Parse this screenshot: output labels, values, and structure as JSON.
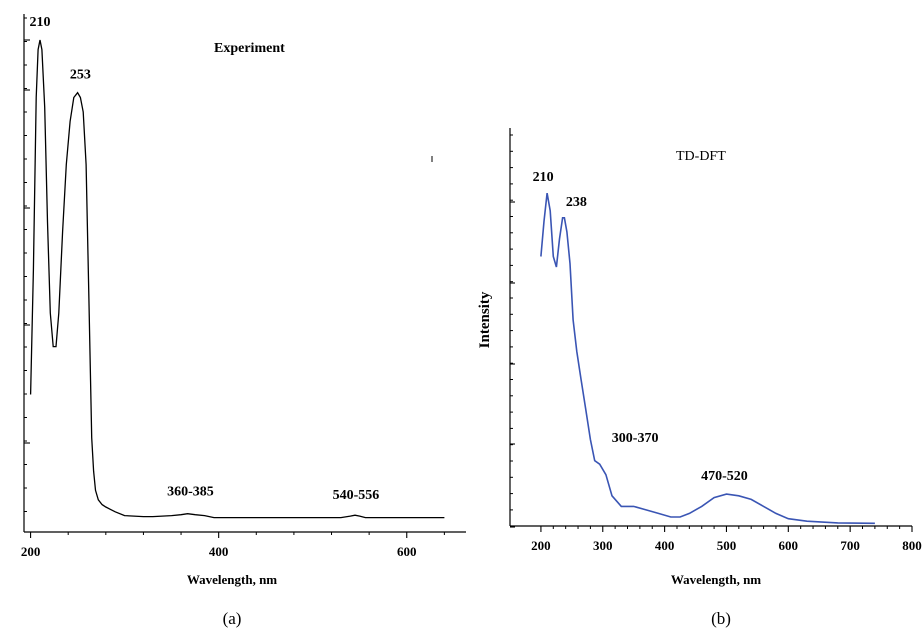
{
  "chart_data": [
    {
      "type": "line",
      "panel_label": "(a)",
      "title": "Experiment",
      "xlabel": "Wavelength, nm",
      "ylabel": "",
      "xlim": [
        193,
        663
      ],
      "ylim": [
        0,
        1.0
      ],
      "xticks": [
        200,
        400,
        600
      ],
      "color": "#000000",
      "grid": false,
      "series": [
        {
          "x": [
            200,
            203,
            206,
            208,
            210,
            212,
            215,
            218,
            221,
            224,
            227,
            230,
            234,
            238,
            242,
            246,
            250,
            253,
            256,
            259,
            262,
            265,
            267,
            269,
            272,
            276,
            280,
            285,
            290,
            300,
            310,
            320,
            330,
            340,
            350,
            360,
            367,
            375,
            385,
            395,
            410,
            450,
            500,
            530,
            540,
            545,
            550,
            556,
            565,
            600,
            640
          ],
          "y": [
            0.26,
            0.52,
            0.88,
            0.98,
            1.0,
            0.98,
            0.86,
            0.62,
            0.43,
            0.36,
            0.36,
            0.43,
            0.6,
            0.74,
            0.83,
            0.88,
            0.89,
            0.88,
            0.85,
            0.74,
            0.46,
            0.17,
            0.1,
            0.06,
            0.04,
            0.03,
            0.025,
            0.02,
            0.015,
            0.007,
            0.006,
            0.005,
            0.005,
            0.006,
            0.007,
            0.009,
            0.011,
            0.009,
            0.007,
            0.003,
            0.003,
            0.003,
            0.003,
            0.003,
            0.006,
            0.008,
            0.006,
            0.003,
            0.003,
            0.003,
            0.003
          ]
        }
      ],
      "annotations": [
        {
          "text": "210",
          "x": 210,
          "y": 1.0
        },
        {
          "text": "253",
          "x": 253,
          "y": 0.89
        },
        {
          "text": "360-385",
          "x": 370,
          "y": 0.011
        },
        {
          "text": "540-556",
          "x": 546,
          "y": 0.008
        }
      ]
    },
    {
      "type": "line",
      "panel_label": "(b)",
      "title": "TD-DFT",
      "xlabel": "Wavelength, nm",
      "ylabel": "Intensity",
      "xlim": [
        150,
        800
      ],
      "ylim": [
        0,
        1.0
      ],
      "xticks": [
        200,
        300,
        400,
        500,
        600,
        700,
        800
      ],
      "color": "#3a55b4",
      "grid": false,
      "series": [
        {
          "x": [
            200,
            205,
            210,
            215,
            220,
            225,
            230,
            235,
            238,
            242,
            247,
            252,
            258,
            265,
            272,
            280,
            287,
            295,
            305,
            315,
            330,
            350,
            370,
            390,
            410,
            425,
            440,
            460,
            480,
            500,
            520,
            540,
            560,
            580,
            600,
            630,
            680,
            740
          ],
          "y": [
            0.76,
            0.86,
            0.94,
            0.89,
            0.76,
            0.73,
            0.81,
            0.87,
            0.87,
            0.83,
            0.74,
            0.58,
            0.49,
            0.41,
            0.33,
            0.24,
            0.18,
            0.17,
            0.14,
            0.08,
            0.05,
            0.05,
            0.04,
            0.03,
            0.02,
            0.02,
            0.03,
            0.05,
            0.075,
            0.085,
            0.08,
            0.07,
            0.05,
            0.03,
            0.015,
            0.008,
            0.003,
            0.002
          ]
        }
      ],
      "annotations": [
        {
          "text": "210",
          "x": 210,
          "y": 0.94
        },
        {
          "text": "238",
          "x": 238,
          "y": 0.87
        },
        {
          "text": "300-370",
          "x": 320,
          "y": 0.17
        },
        {
          "text": "470-520",
          "x": 500,
          "y": 0.085
        }
      ]
    }
  ]
}
